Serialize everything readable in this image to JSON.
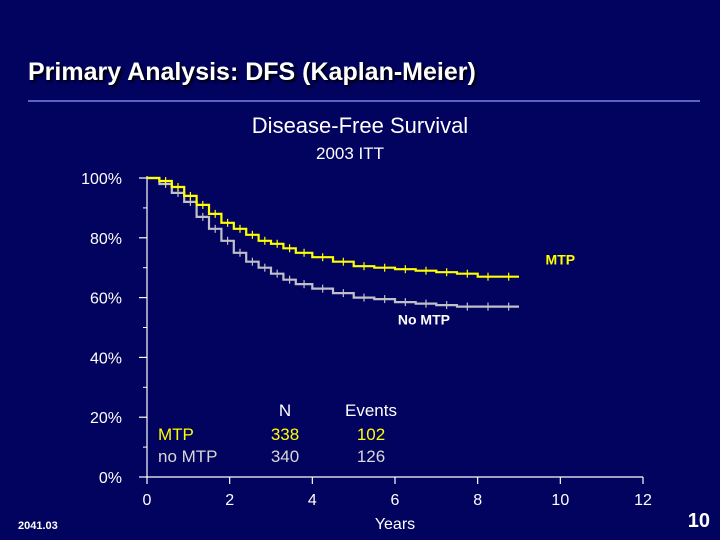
{
  "slide": {
    "title": "Primary Analysis: DFS (Kaplan-Meier)",
    "footer_code": "2041.03",
    "page_number": "10"
  },
  "chart_data": {
    "type": "line",
    "title": "Disease-Free Survival",
    "subtitle": "2003 ITT",
    "xlabel": "Years",
    "ylabel": "",
    "xlim": [
      0,
      12
    ],
    "ylim": [
      0,
      100
    ],
    "x_ticks": [
      "0",
      "2",
      "4",
      "6",
      "8",
      "10",
      "12"
    ],
    "y_ticks": [
      "0%",
      "20%",
      "40%",
      "60%",
      "80%",
      "100%"
    ],
    "series": [
      {
        "name": "MTP",
        "color": "#ffff00",
        "x": [
          0,
          0.3,
          0.6,
          0.9,
          1.2,
          1.5,
          1.8,
          2.1,
          2.4,
          2.7,
          3.0,
          3.3,
          3.6,
          4.0,
          4.5,
          5.0,
          5.5,
          6.0,
          6.5,
          7.0,
          7.5,
          8.0,
          8.5,
          9.0
        ],
        "y": [
          100,
          99,
          97,
          94,
          91,
          88,
          85,
          83,
          81,
          79,
          78,
          76.5,
          75,
          73.5,
          72,
          70.5,
          70,
          69.5,
          69,
          68.5,
          68,
          67,
          67,
          67
        ]
      },
      {
        "name": "No MTP",
        "color": "#c0c0c8",
        "x": [
          0,
          0.3,
          0.6,
          0.9,
          1.2,
          1.5,
          1.8,
          2.1,
          2.4,
          2.7,
          3.0,
          3.3,
          3.6,
          4.0,
          4.5,
          5.0,
          5.5,
          6.0,
          6.5,
          7.0,
          7.5,
          8.0,
          8.5,
          9.0
        ],
        "y": [
          100,
          98,
          95,
          92,
          87,
          83,
          79,
          75,
          72,
          70,
          68,
          66,
          64.5,
          63,
          61.5,
          60,
          59.5,
          58.5,
          58,
          57.5,
          57,
          57,
          57,
          57
        ]
      }
    ],
    "annotations": [
      {
        "text": "MTP",
        "color": "#ffff00",
        "x": 10,
        "y": 71
      },
      {
        "text": "No MTP",
        "color": "#ffffff",
        "x": 6.7,
        "y": 51
      }
    ],
    "risk_table": {
      "headers": [
        "N",
        "Events"
      ],
      "rows": [
        {
          "label": "MTP",
          "n": "338",
          "events": "102",
          "color": "#ffff00"
        },
        {
          "label": "no MTP",
          "n": "340",
          "events": "126",
          "color": "#d8d8d8"
        }
      ]
    }
  }
}
